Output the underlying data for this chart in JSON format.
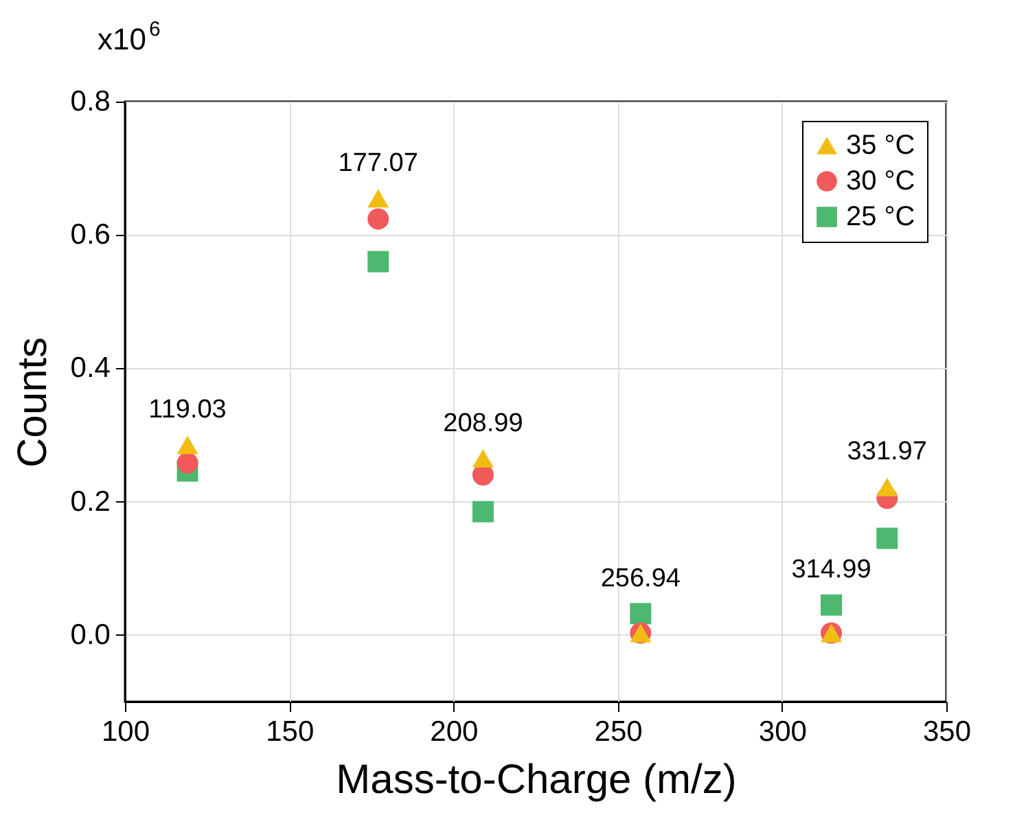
{
  "chart_data": {
    "type": "scatter",
    "xlabel": "Mass-to-Charge (m/z)",
    "ylabel": "Counts",
    "x": [
      119.03,
      177.07,
      208.99,
      256.94,
      314.99,
      331.97
    ],
    "series": [
      {
        "name": "35 °C",
        "color": "#f2bd12",
        "marker": "triangle",
        "values": [
          0.285,
          0.655,
          0.265,
          0.003,
          0.003,
          0.222
        ]
      },
      {
        "name": "30 °C",
        "color": "#f05a5a",
        "marker": "circle",
        "values": [
          0.258,
          0.624,
          0.24,
          0.003,
          0.003,
          0.205
        ]
      },
      {
        "name": "25 °C",
        "color": "#4cb870",
        "marker": "square",
        "values": [
          0.246,
          0.56,
          0.185,
          0.032,
          0.045,
          0.145
        ]
      }
    ],
    "xlim": [
      100,
      350
    ],
    "xticks": [
      100,
      150,
      200,
      250,
      300,
      350
    ],
    "ylim": [
      -0.1,
      0.8
    ],
    "yticks": [
      {
        "value": 0,
        "label": "0.0"
      },
      0.2,
      0.4,
      0.6,
      0.8
    ],
    "annotations": [
      "x10$^{6}$",
      {
        "text": "119.03",
        "x": 119.03,
        "y": 0.285
      },
      {
        "text": "177.07",
        "x": 177.07,
        "y": 0.655
      },
      {
        "text": "208.99",
        "x": 208.99,
        "y": 0.265
      },
      {
        "text": "256.94",
        "x": 256.94,
        "y": 0.032
      },
      {
        "text": "314.99",
        "x": 314.99,
        "y": 0.045
      },
      {
        "text": "331.97",
        "x": 331.97,
        "y": 0.222
      }
    ],
    "grid": true,
    "legend": "top right"
  }
}
